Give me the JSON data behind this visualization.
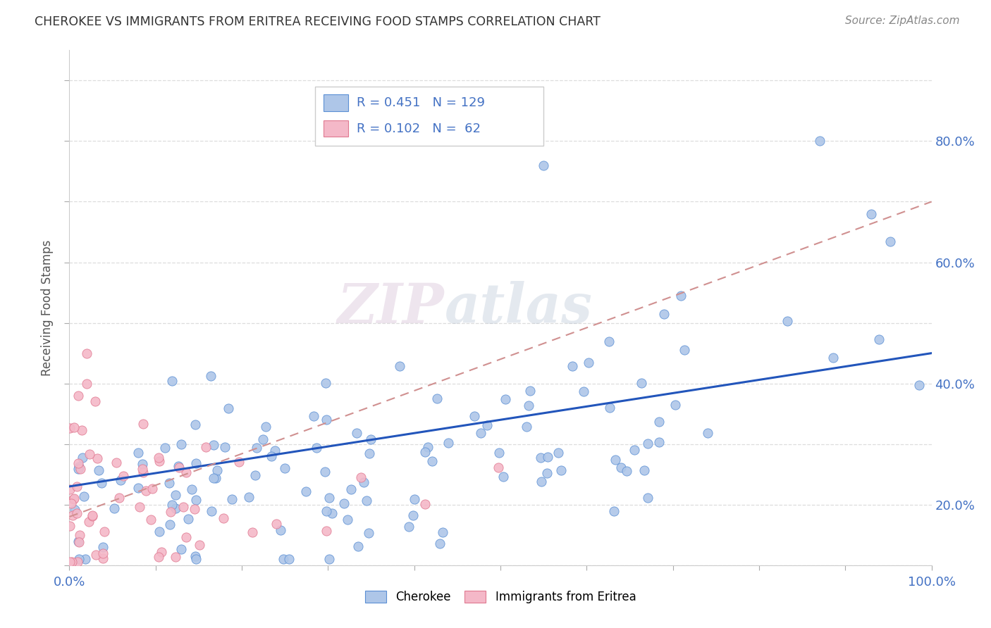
{
  "title": "CHEROKEE VS IMMIGRANTS FROM ERITREA RECEIVING FOOD STAMPS CORRELATION CHART",
  "source": "Source: ZipAtlas.com",
  "ylabel": "Receiving Food Stamps",
  "xlim": [
    0.0,
    1.0
  ],
  "ylim": [
    0.0,
    0.85
  ],
  "blue_color": "#aec6e8",
  "blue_edge_color": "#5b8fd4",
  "pink_color": "#f4b8c8",
  "pink_edge_color": "#e07890",
  "line_blue_color": "#2255bb",
  "line_pink_color": "#d09090",
  "tick_color": "#4472c4",
  "legend_text_color": "#4472c4",
  "title_color": "#333333",
  "source_color": "#888888",
  "ylabel_color": "#555555",
  "grid_color": "#dddddd",
  "background_color": "#ffffff",
  "watermark_zip_color": "#c8aac8",
  "watermark_atlas_color": "#a8b8cc"
}
